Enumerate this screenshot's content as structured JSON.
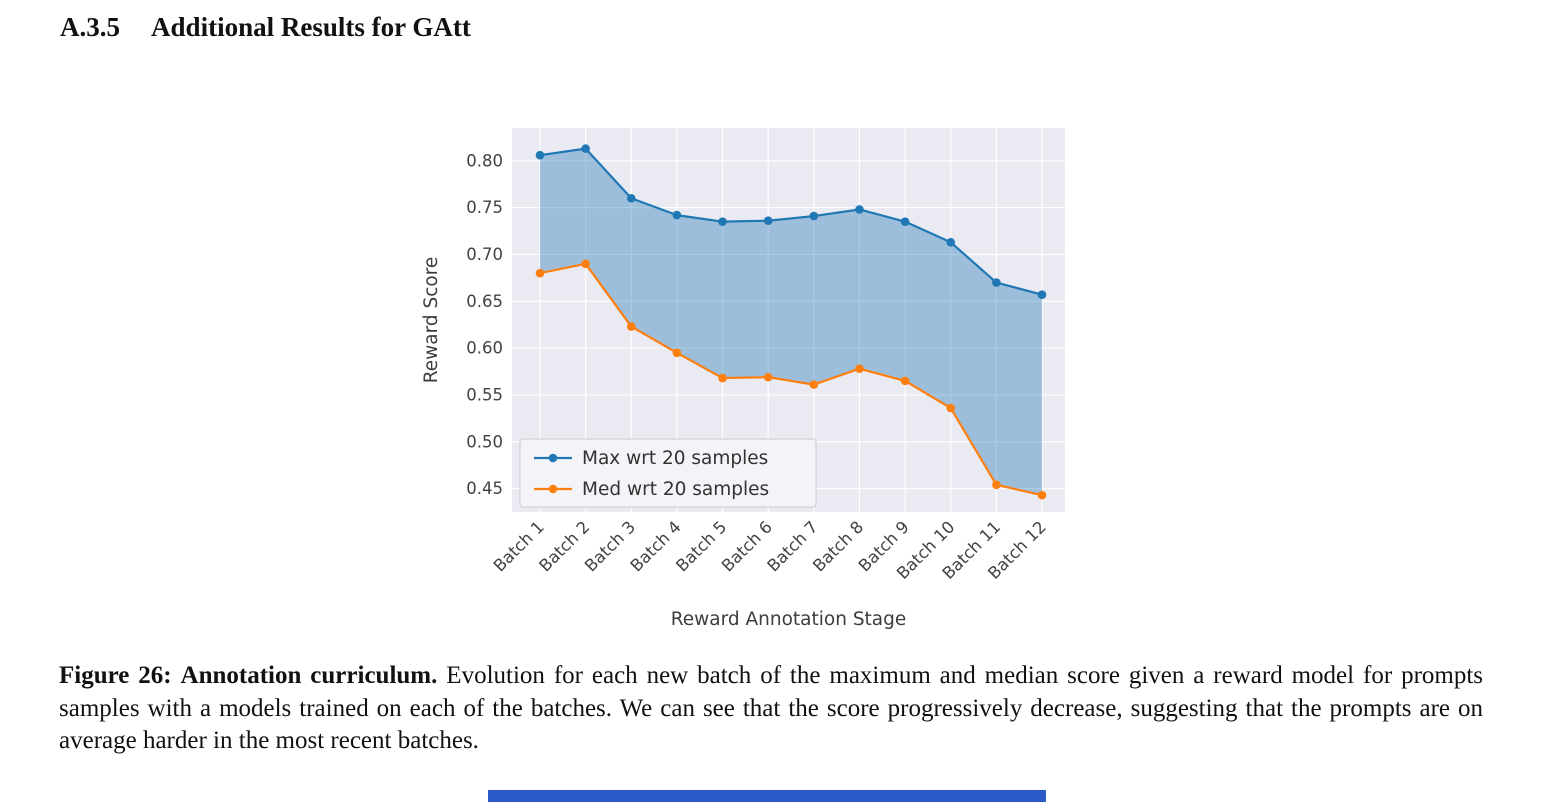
{
  "page": {
    "heading_number": "A.3.5",
    "heading_title": "Additional Results for GAtt"
  },
  "caption": {
    "label": "Figure 26:",
    "title": "Annotation curriculum.",
    "body": "Evolution for each new batch of the maximum and median score given a reward model for prompts samples with a models trained on each of the batches. We can see that the score progressively decrease, suggesting that the prompts are on average harder in the most recent batches."
  },
  "chart_data": {
    "type": "line",
    "title": "",
    "xlabel": "Reward Annotation Stage",
    "ylabel": "Reward Score",
    "categories": [
      "Batch 1",
      "Batch 2",
      "Batch 3",
      "Batch 4",
      "Batch 5",
      "Batch 6",
      "Batch 7",
      "Batch 8",
      "Batch 9",
      "Batch 10",
      "Batch 11",
      "Batch 12"
    ],
    "yticks": [
      0.45,
      0.5,
      0.55,
      0.6,
      0.65,
      0.7,
      0.75,
      0.8
    ],
    "ylim": [
      0.425,
      0.835
    ],
    "grid": true,
    "plot_bg": "#eaeaf2",
    "grid_color": "#ffffff",
    "tick_color": "#424242",
    "label_color": "#3d3d3d",
    "legend_position": "lower-left",
    "fill_between": {
      "color": "#1f77b4",
      "opacity": 0.38
    },
    "series": [
      {
        "name": "Max wrt 20 samples",
        "color": "#1f77b4",
        "values": [
          0.806,
          0.813,
          0.76,
          0.742,
          0.735,
          0.736,
          0.741,
          0.748,
          0.735,
          0.713,
          0.67,
          0.657
        ]
      },
      {
        "name": "Med wrt 20 samples",
        "color": "#ff7f0e",
        "values": [
          0.68,
          0.69,
          0.623,
          0.595,
          0.568,
          0.569,
          0.561,
          0.578,
          0.565,
          0.536,
          0.454,
          0.443
        ]
      }
    ]
  },
  "misc": {
    "bottom_bar_color": "#2a59c9"
  }
}
